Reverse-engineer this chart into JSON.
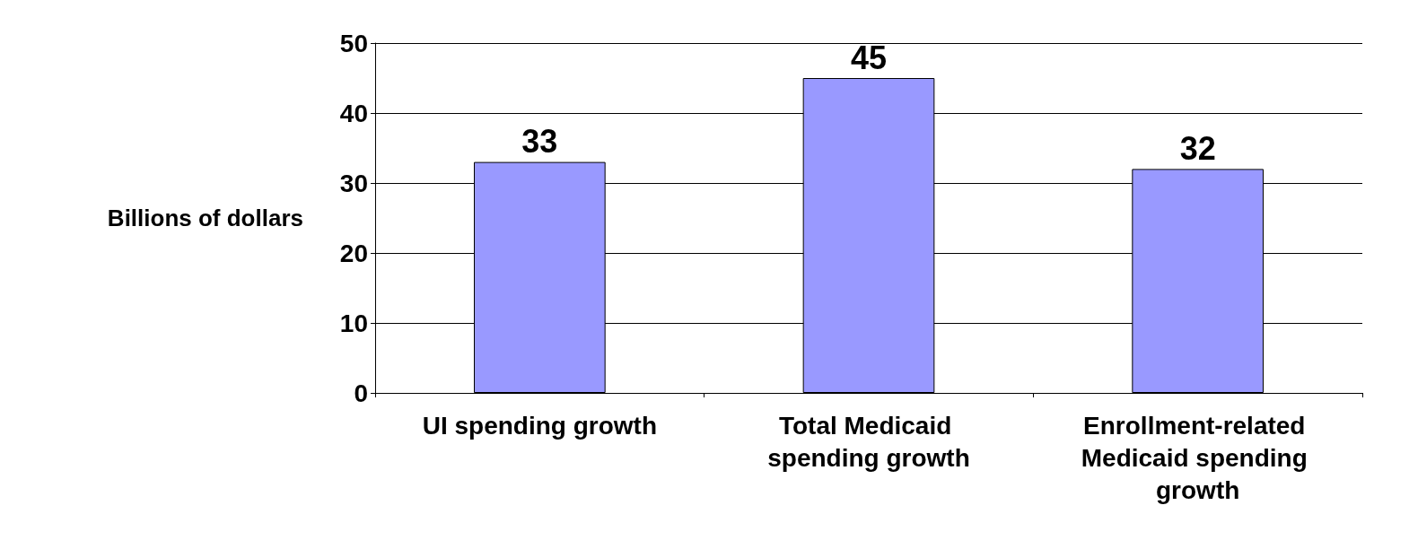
{
  "chart_data": {
    "type": "bar",
    "ylabel": "Billions of dollars",
    "categories": [
      "UI spending growth",
      "Total Medicaid spending growth",
      "Enrollment-related Medicaid spending growth"
    ],
    "values": [
      33,
      45,
      32
    ],
    "color": "#9999ff",
    "ylim": [
      0,
      50
    ],
    "yticks": [
      0,
      10,
      20,
      30,
      40,
      50
    ],
    "grid": "y",
    "data_labels": true
  }
}
